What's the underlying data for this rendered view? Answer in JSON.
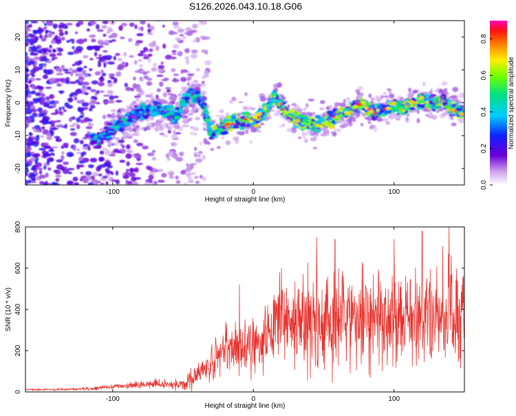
{
  "title": "S126.2026.043.10.18.G06",
  "colors": {
    "snr_line": "#e8322d",
    "frame": "#000000",
    "background": "#ffffff"
  },
  "chart_data": [
    {
      "type": "heatmap",
      "name": "spectrogram",
      "xlabel": "Height of straight line (km)",
      "ylabel": "Frequency (Hz)",
      "xlim": [
        -162,
        150
      ],
      "ylim": [
        -25,
        25
      ],
      "x_ticks": [
        -100,
        0,
        100
      ],
      "y_ticks": [
        -20,
        -10,
        0,
        10,
        20
      ],
      "x_tick_labels": [
        "-100",
        "0",
        "100"
      ],
      "y_tick_labels": [
        "-20",
        "-10",
        "0",
        "10",
        "20"
      ],
      "ridge": {
        "description": "Frequency of the dominant signal versus height",
        "x": [
          -110,
          -100,
          -90,
          -80,
          -70,
          -60,
          -55,
          -50,
          -45,
          -40,
          -35,
          -30,
          -25,
          -20,
          -15,
          -10,
          -5,
          0,
          5,
          10,
          15,
          20,
          25,
          30,
          35,
          40,
          45,
          50,
          55,
          60,
          65,
          70,
          75,
          80,
          85,
          90,
          95,
          100,
          105,
          110,
          115,
          120,
          125,
          130,
          135,
          140,
          145,
          150
        ],
        "y": [
          -11,
          -8,
          -5,
          -3,
          -2,
          -3,
          -5,
          0,
          3,
          2,
          -1,
          -10,
          -8,
          -7,
          -6,
          -6,
          -5,
          -6,
          -4,
          -2,
          2,
          -1,
          -4,
          -5,
          -6,
          -6,
          -7,
          -6,
          -5,
          -4,
          -3,
          -2,
          0,
          -1,
          -3,
          -2,
          -2,
          -1,
          -2,
          -1,
          0,
          1,
          0,
          0,
          1,
          -2,
          -2,
          -3
        ]
      },
      "colorbar": {
        "label": "Normalized spectral amplitude",
        "range": [
          0.0,
          0.9
        ],
        "ticks": [
          0.0,
          0.2,
          0.4,
          0.6,
          0.8
        ],
        "tick_labels": [
          "0.0",
          "0.2",
          "0.4",
          "0.6",
          "0.8"
        ],
        "colormap": "rainbow (violet → blue → cyan → green → yellow → red → magenta)"
      }
    },
    {
      "type": "line",
      "name": "snr",
      "xlabel": "Height of straight line (km)",
      "ylabel": "SNR (10 * v/v)",
      "xlim": [
        -162,
        150
      ],
      "ylim": [
        0,
        800
      ],
      "x_ticks": [
        -100,
        0,
        100
      ],
      "y_ticks": [
        0,
        200,
        400,
        600,
        800
      ],
      "x_tick_labels": [
        "-100",
        "0",
        "100"
      ],
      "y_tick_labels": [
        "0",
        "200",
        "400",
        "600",
        "800"
      ],
      "series": [
        {
          "name": "SNR",
          "envelope_x": [
            -160,
            -140,
            -120,
            -100,
            -80,
            -70,
            -60,
            -50,
            -45,
            -40,
            -35,
            -30,
            -25,
            -20,
            -15,
            -10,
            -5,
            0,
            5,
            10,
            15,
            20,
            25,
            30,
            40,
            50,
            60,
            70,
            80,
            90,
            100,
            110,
            120,
            130,
            140,
            150
          ],
          "mean": [
            12,
            12,
            15,
            25,
            35,
            40,
            35,
            40,
            60,
            80,
            110,
            140,
            160,
            200,
            210,
            230,
            220,
            240,
            260,
            280,
            300,
            320,
            330,
            340,
            330,
            320,
            340,
            360,
            350,
            360,
            350,
            350,
            360,
            360,
            370,
            360
          ],
          "spread": [
            6,
            6,
            8,
            12,
            20,
            25,
            25,
            30,
            45,
            60,
            80,
            100,
            110,
            130,
            140,
            150,
            140,
            160,
            170,
            180,
            200,
            220,
            230,
            240,
            250,
            240,
            250,
            260,
            260,
            260,
            250,
            250,
            260,
            250,
            270,
            250
          ]
        }
      ],
      "peaks": [
        {
          "x": -10,
          "y": 520
        },
        {
          "x": 20,
          "y": 600
        },
        {
          "x": 45,
          "y": 750
        },
        {
          "x": 58,
          "y": 740
        },
        {
          "x": 100,
          "y": 740
        },
        {
          "x": 120,
          "y": 780
        },
        {
          "x": 139,
          "y": 800
        }
      ]
    }
  ]
}
